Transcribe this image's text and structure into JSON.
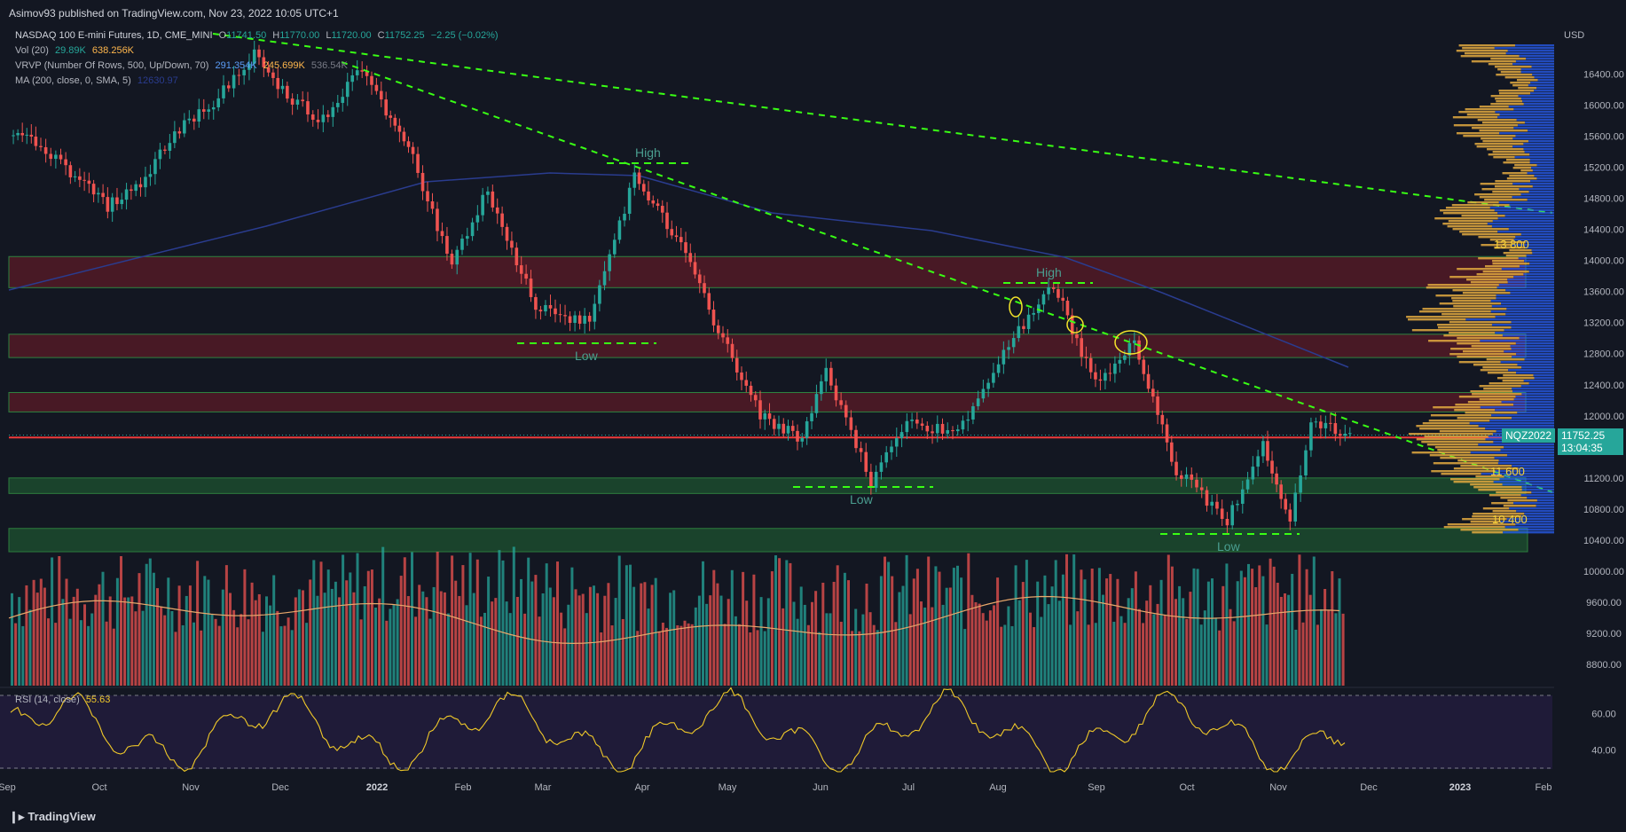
{
  "header": {
    "published": "Asimov93 published on TradingView.com, Nov 23, 2022 10:05 UTC+1"
  },
  "legend": {
    "symbol": "NASDAQ 100 E-mini Futures, 1D, CME_MINI",
    "open_label": "O",
    "open": "11741.50",
    "high_label": "H",
    "high": "11770.00",
    "low_label": "L",
    "low": "11720.00",
    "close_label": "C",
    "close": "11752.25",
    "change": "−2.25 (−0.02%)",
    "vol_name": "Vol (20)",
    "vol_value": "29.89K",
    "vol_ma": "638.256K",
    "vrvp_name": "VRVP (Number Of Rows, 500, Up/Down, 70)",
    "vrvp_v1": "291.354K",
    "vrvp_v2": "245.699K",
    "vrvp_v3": "536.54K",
    "ma_name": "MA (200, close, 0, SMA, 5)",
    "ma_value": "12630.97",
    "rsi_name": "RSI (14, close)",
    "rsi_value": "55.63"
  },
  "colors": {
    "background": "#131722",
    "up": "#26a69a",
    "down": "#ef5350",
    "trendline": "#39ff14",
    "resistance_zone": "#5a1a26",
    "support_zone": "#1e5631",
    "ma": "#2a3c8f",
    "rsi_line": "#f0c929",
    "vrvp_up": "#2962ff",
    "vrvp_down": "#e2a93f"
  },
  "price_label": {
    "ticker": "NQZ2022",
    "price": "11752.25",
    "countdown": "13:04:35",
    "currency": "USD"
  },
  "annotations": {
    "high": "High",
    "low": "Low",
    "level_13800": "13 800",
    "level_11600": "11 600",
    "level_10400": "10 400"
  },
  "footer": {
    "brand": "TradingView"
  },
  "chart_data": {
    "type": "candlestick",
    "title": "NASDAQ 100 E-mini Futures, 1D, CME_MINI",
    "currency": "USD",
    "price_ticks": [
      16400,
      16000,
      15600,
      15200,
      14800,
      14400,
      14000,
      13600,
      13200,
      12800,
      12400,
      12000,
      11200,
      10800,
      10400,
      10000,
      9600,
      9200,
      8800
    ],
    "rsi_ticks": [
      60,
      40
    ],
    "x_tick_labels": [
      "Sep",
      "Oct",
      "Nov",
      "Dec",
      "2022",
      "Feb",
      "Mar",
      "Apr",
      "May",
      "Jun",
      "Jul",
      "Aug",
      "Sep",
      "Oct",
      "Nov",
      "Dec",
      "2023",
      "Feb"
    ],
    "x_range": [
      "2021-09-01",
      "2023-02-01"
    ],
    "y_range": [
      10000,
      16800
    ],
    "price_path": [
      [
        "2021-09-01",
        15600
      ],
      [
        "2021-09-10",
        15550
      ],
      [
        "2021-09-20",
        15200
      ],
      [
        "2021-10-04",
        14700
      ],
      [
        "2021-10-15",
        15000
      ],
      [
        "2021-10-28",
        15700
      ],
      [
        "2021-11-10",
        16100
      ],
      [
        "2021-11-22",
        16650
      ],
      [
        "2021-12-03",
        16100
      ],
      [
        "2021-12-15",
        15800
      ],
      [
        "2021-12-28",
        16500
      ],
      [
        "2022-01-05",
        15900
      ],
      [
        "2022-01-14",
        15300
      ],
      [
        "2022-01-27",
        13950
      ],
      [
        "2022-02-08",
        14900
      ],
      [
        "2022-02-24",
        13400
      ],
      [
        "2022-03-14",
        13200
      ],
      [
        "2022-03-29",
        15100
      ],
      [
        "2022-04-12",
        14300
      ],
      [
        "2022-04-26",
        13100
      ],
      [
        "2022-05-10",
        12000
      ],
      [
        "2022-05-24",
        11700
      ],
      [
        "2022-06-01",
        12600
      ],
      [
        "2022-06-16",
        11150
      ],
      [
        "2022-06-28",
        11900
      ],
      [
        "2022-07-15",
        11800
      ],
      [
        "2022-08-01",
        12900
      ],
      [
        "2022-08-16",
        13700
      ],
      [
        "2022-08-30",
        12400
      ],
      [
        "2022-09-12",
        12950
      ],
      [
        "2022-09-26",
        11300
      ],
      [
        "2022-10-13",
        10650
      ],
      [
        "2022-10-25",
        11600
      ],
      [
        "2022-11-03",
        10700
      ],
      [
        "2022-11-10",
        11900
      ],
      [
        "2022-11-23",
        11752
      ]
    ],
    "levels": {
      "resistance_zones": [
        [
          13650,
          14050
        ],
        [
          12750,
          13050
        ],
        [
          12050,
          12300
        ]
      ],
      "support_zones": [
        [
          11000,
          11200
        ],
        [
          10250,
          10550
        ]
      ],
      "red_line": 11720
    },
    "rsi_last": 55.63,
    "ma200_last": 12630.97
  }
}
